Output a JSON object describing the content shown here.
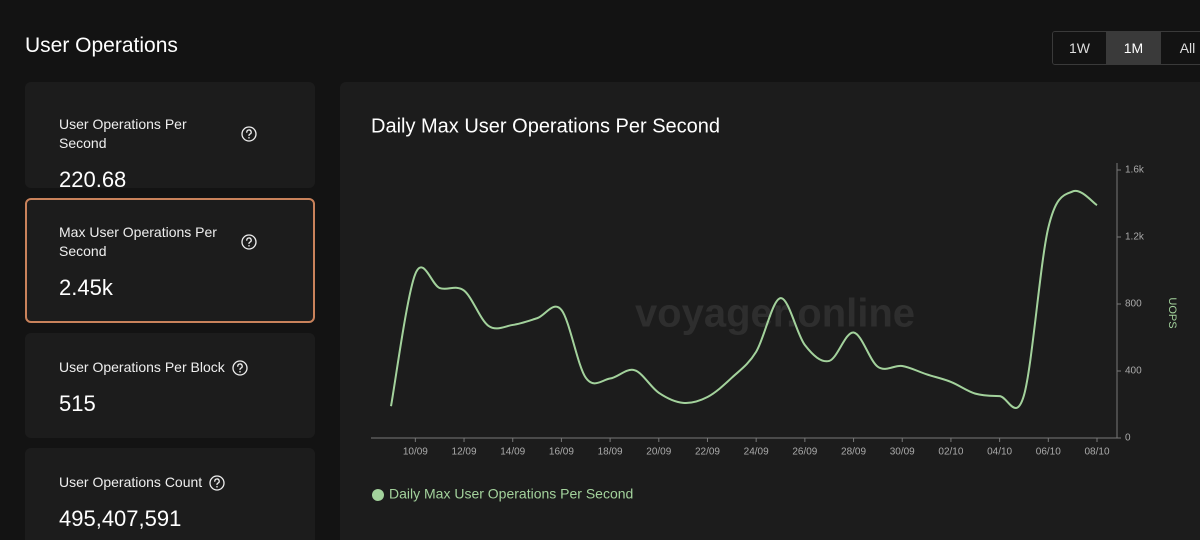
{
  "header": {
    "title": "User Operations"
  },
  "range_buttons": [
    "1W",
    "1M",
    "All"
  ],
  "active_range": 1,
  "stats": [
    {
      "label": "User Operations Per Second",
      "value": "220.68"
    },
    {
      "label": "Max User Operations Per Second",
      "value": "2.45k"
    },
    {
      "label": "User Operations Per Block",
      "value": "515"
    },
    {
      "label": "User Operations Count",
      "value": "495,407,591"
    }
  ],
  "selected_stat": 1,
  "chart_data": {
    "type": "line",
    "title": "Daily Max User Operations Per Second",
    "watermark": "voyager.online",
    "categories": [
      null,
      "10/09",
      null,
      "12/09",
      null,
      "14/09",
      null,
      "16/09",
      null,
      "18/09",
      null,
      "20/09",
      null,
      "22/09",
      null,
      "24/09",
      null,
      "26/09",
      null,
      "28/09",
      null,
      "30/09",
      null,
      "02/10",
      null,
      "04/10",
      null,
      "06/10",
      null,
      "08/10"
    ],
    "series": [
      {
        "name": "Daily Max User Operations Per Second",
        "color": "#a3d29c",
        "values": [
          190,
          980,
          895,
          880,
          670,
          675,
          715,
          765,
          360,
          355,
          405,
          270,
          210,
          245,
          360,
          515,
          835,
          555,
          460,
          630,
          425,
          430,
          380,
          335,
          265,
          250,
          255,
          1255,
          1472,
          1390
        ]
      }
    ],
    "y_label": "UOPS",
    "ylim": [
      0,
      1600
    ],
    "yticks": [
      0,
      400,
      800,
      {
        "value": 1200,
        "label": "1.2k"
      },
      {
        "value": 1600,
        "label": "1.6k"
      }
    ],
    "y_axis_side": "right",
    "grid": false
  }
}
